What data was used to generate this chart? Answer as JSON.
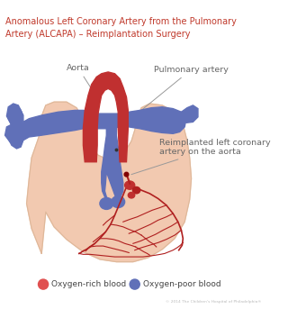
{
  "title_line1": "Anomalous Left Coronary Artery from the Pulmonary",
  "title_line2": "Artery (ALCAPA) – Reimplantation Surgery",
  "title_color": "#c0392b",
  "bg_color": "#ffffff",
  "heart_fill": "#f2c9b0",
  "heart_stroke": "#deb89a",
  "aorta_color": "#c03030",
  "aorta_dark": "#a02020",
  "pulmonary_color": "#6070b8",
  "pulmonary_dark": "#4858a0",
  "coronary_color": "#b02020",
  "label_color": "#666666",
  "legend_rich_color": "#e05050",
  "legend_poor_color": "#6070b8",
  "legend_rich_text": "Oxygen-rich blood",
  "legend_poor_text": "Oxygen-poor blood",
  "copyright": "© 2014 The Children's Hospital of Philadelphia®",
  "label_aorta": "Aorta",
  "label_pulmonary": "Pulmonary artery",
  "label_reimplanted": "Reimplanted left coronary\nartery on the aorta"
}
